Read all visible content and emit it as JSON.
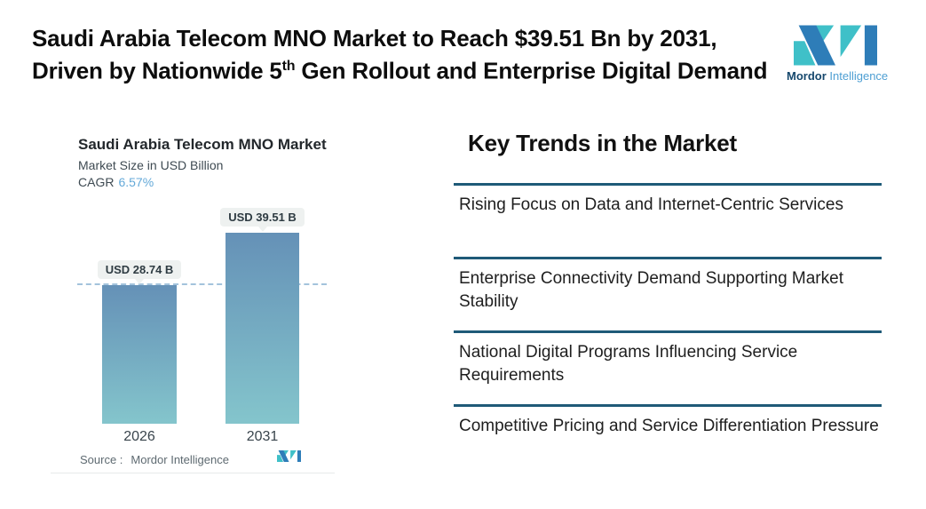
{
  "header": {
    "title_line1": "Saudi Arabia Telecom MNO Market to Reach $39.51 Bn by 2031,",
    "title_line2_before_sup": "Driven by Nationwide 5",
    "title_line2_sup": "th",
    "title_line2_after_sup": " Gen Rollout and Enterprise Digital Demand"
  },
  "brand": {
    "name_bold": "Mordor",
    "name_regular": " Intelligence",
    "colors": {
      "teal": "#3FC0C8",
      "blue": "#2E7DB8"
    }
  },
  "chart": {
    "title": "Saudi Arabia Telecom MNO Market",
    "subtitle": "Market Size in USD Billion",
    "cagr_label": "CAGR",
    "cagr_value": "6.57%",
    "source_label": "Source :",
    "source_value": "Mordor Intelligence"
  },
  "chart_data": {
    "type": "bar",
    "title": "Saudi Arabia Telecom MNO Market",
    "ylabel": "Market Size in USD Billion",
    "cagr": "6.57%",
    "categories": [
      "2026",
      "2031"
    ],
    "values": [
      28.74,
      39.51
    ],
    "value_labels": [
      "USD 28.74 B",
      "USD 39.51 B"
    ],
    "reference_line": 28.74,
    "bar_gradient_top": "#6591B7",
    "bar_gradient_bottom": "#84C5CC",
    "grid": "off",
    "legend": "none"
  },
  "trends": {
    "heading": "Key Trends in the Market",
    "items": [
      {
        "text": "Rising Focus on Data and Internet-Centric Services"
      },
      {
        "text": "Enterprise Connectivity Demand Supporting Market Stability"
      },
      {
        "text": "National Digital Programs Influencing Service Requirements"
      },
      {
        "text": "Competitive Pricing and Service Differentiation Pressure"
      }
    ]
  }
}
